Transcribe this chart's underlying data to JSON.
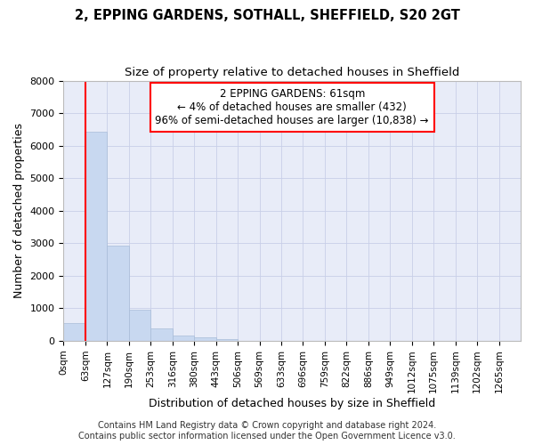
{
  "title_line1": "2, EPPING GARDENS, SOTHALL, SHEFFIELD, S20 2GT",
  "title_line2": "Size of property relative to detached houses in Sheffield",
  "xlabel": "Distribution of detached houses by size in Sheffield",
  "ylabel": "Number of detached properties",
  "bar_color": "#c8d8f0",
  "bar_edge_color": "#a8bcd8",
  "grid_color": "#c8cfe8",
  "background_color": "#e8ecf8",
  "categories": [
    "0sqm",
    "63sqm",
    "127sqm",
    "190sqm",
    "253sqm",
    "316sqm",
    "380sqm",
    "443sqm",
    "506sqm",
    "569sqm",
    "633sqm",
    "696sqm",
    "759sqm",
    "822sqm",
    "886sqm",
    "949sqm",
    "1012sqm",
    "1075sqm",
    "1139sqm",
    "1202sqm",
    "1265sqm"
  ],
  "values": [
    550,
    6430,
    2920,
    960,
    370,
    160,
    100,
    65,
    0,
    0,
    0,
    0,
    0,
    0,
    0,
    0,
    0,
    0,
    0,
    0,
    0
  ],
  "ylim": [
    0,
    8000
  ],
  "yticks": [
    0,
    1000,
    2000,
    3000,
    4000,
    5000,
    6000,
    7000,
    8000
  ],
  "annotation_text_line1": "2 EPPING GARDENS: 61sqm",
  "annotation_text_line2": "← 4% of detached houses are smaller (432)",
  "annotation_text_line3": "96% of semi-detached houses are larger (10,838) →",
  "annotation_box_color": "white",
  "annotation_box_edge_color": "red",
  "property_line_color": "red",
  "footer_line1": "Contains HM Land Registry data © Crown copyright and database right 2024.",
  "footer_line2": "Contains public sector information licensed under the Open Government Licence v3.0.",
  "title_fontsize": 10.5,
  "subtitle_fontsize": 9.5,
  "axis_label_fontsize": 9,
  "tick_fontsize": 7.5,
  "annotation_fontsize": 8.5,
  "footer_fontsize": 7
}
